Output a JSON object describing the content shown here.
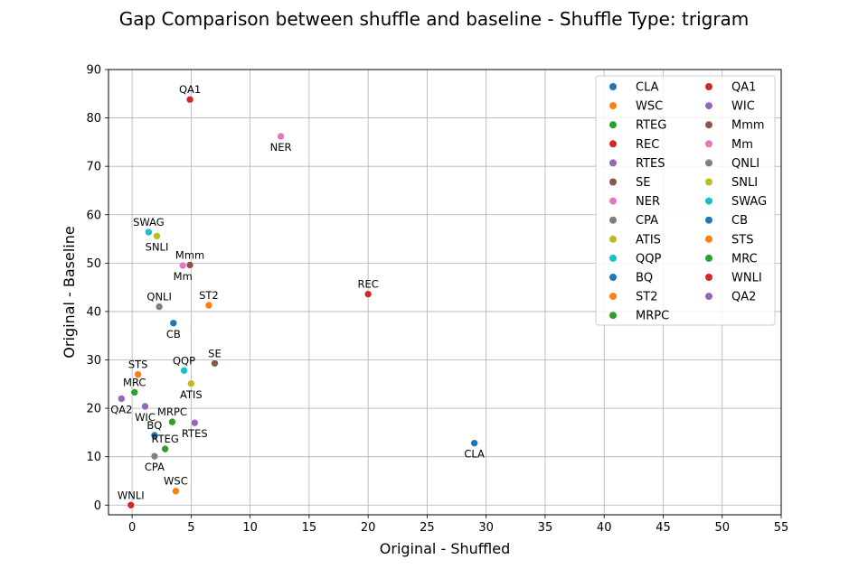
{
  "chart_data": {
    "type": "scatter",
    "title": "Gap Comparison between shuffle and baseline - Shuffle Type: trigram",
    "xlabel": "Original - Shuffled",
    "ylabel": "Original - Baseline",
    "xlim": [
      -2,
      55
    ],
    "ylim": [
      -2,
      90
    ],
    "xticks": [
      0,
      5,
      10,
      15,
      20,
      25,
      30,
      35,
      40,
      45,
      50,
      55
    ],
    "yticks": [
      0,
      10,
      20,
      30,
      40,
      50,
      60,
      70,
      80,
      90
    ],
    "grid": true,
    "legend_position": "top-right",
    "legend_columns": 2,
    "series": [
      {
        "name": "CLA",
        "x": 29.0,
        "y": 12.8,
        "color": "#1f77b4",
        "label_pos": "below"
      },
      {
        "name": "WSC",
        "x": 3.7,
        "y": 2.9,
        "color": "#ff7f0e",
        "label_pos": "above"
      },
      {
        "name": "RTEG",
        "x": 2.8,
        "y": 11.6,
        "color": "#2ca02c",
        "label_pos": "above"
      },
      {
        "name": "REC",
        "x": 20.0,
        "y": 43.6,
        "color": "#d62728",
        "label_pos": "above"
      },
      {
        "name": "RTES",
        "x": 5.3,
        "y": 17.0,
        "color": "#9467bd",
        "label_pos": "below"
      },
      {
        "name": "SE",
        "x": 7.0,
        "y": 29.3,
        "color": "#8c564b",
        "label_pos": "above"
      },
      {
        "name": "NER",
        "x": 12.6,
        "y": 76.2,
        "color": "#e377c2",
        "label_pos": "below"
      },
      {
        "name": "CPA",
        "x": 1.9,
        "y": 10.1,
        "color": "#7f7f7f",
        "label_pos": "below"
      },
      {
        "name": "ATIS",
        "x": 5.0,
        "y": 25.1,
        "color": "#bcbd22",
        "label_pos": "below"
      },
      {
        "name": "QQP",
        "x": 4.4,
        "y": 27.8,
        "color": "#17becf",
        "label_pos": "above"
      },
      {
        "name": "BQ",
        "x": 1.9,
        "y": 14.4,
        "color": "#1f77b4",
        "label_pos": "above"
      },
      {
        "name": "ST2",
        "x": 6.5,
        "y": 41.3,
        "color": "#ff7f0e",
        "label_pos": "above"
      },
      {
        "name": "MRPC",
        "x": 3.4,
        "y": 17.2,
        "color": "#2ca02c",
        "label_pos": "above"
      },
      {
        "name": "QA1",
        "x": 4.9,
        "y": 83.8,
        "color": "#d62728",
        "label_pos": "above"
      },
      {
        "name": "WIC",
        "x": 1.1,
        "y": 20.4,
        "color": "#9467bd",
        "label_pos": "below"
      },
      {
        "name": "Mmm",
        "x": 4.9,
        "y": 49.6,
        "color": "#8c564b",
        "label_pos": "above"
      },
      {
        "name": "Mm",
        "x": 4.3,
        "y": 49.5,
        "color": "#e377c2",
        "label_pos": "below"
      },
      {
        "name": "QNLI",
        "x": 2.3,
        "y": 41.0,
        "color": "#7f7f7f",
        "label_pos": "above"
      },
      {
        "name": "SNLI",
        "x": 2.1,
        "y": 55.6,
        "color": "#bcbd22",
        "label_pos": "below"
      },
      {
        "name": "SWAG",
        "x": 1.4,
        "y": 56.4,
        "color": "#17becf",
        "label_pos": "above"
      },
      {
        "name": "CB",
        "x": 3.5,
        "y": 37.6,
        "color": "#1f77b4",
        "label_pos": "below"
      },
      {
        "name": "STS",
        "x": 0.5,
        "y": 27.0,
        "color": "#ff7f0e",
        "label_pos": "above"
      },
      {
        "name": "MRC",
        "x": 0.2,
        "y": 23.3,
        "color": "#2ca02c",
        "label_pos": "above"
      },
      {
        "name": "WNLI",
        "x": -0.1,
        "y": 0.0,
        "color": "#d62728",
        "label_pos": "above"
      },
      {
        "name": "QA2",
        "x": -0.9,
        "y": 22.0,
        "color": "#9467bd",
        "label_pos": "below"
      }
    ]
  }
}
